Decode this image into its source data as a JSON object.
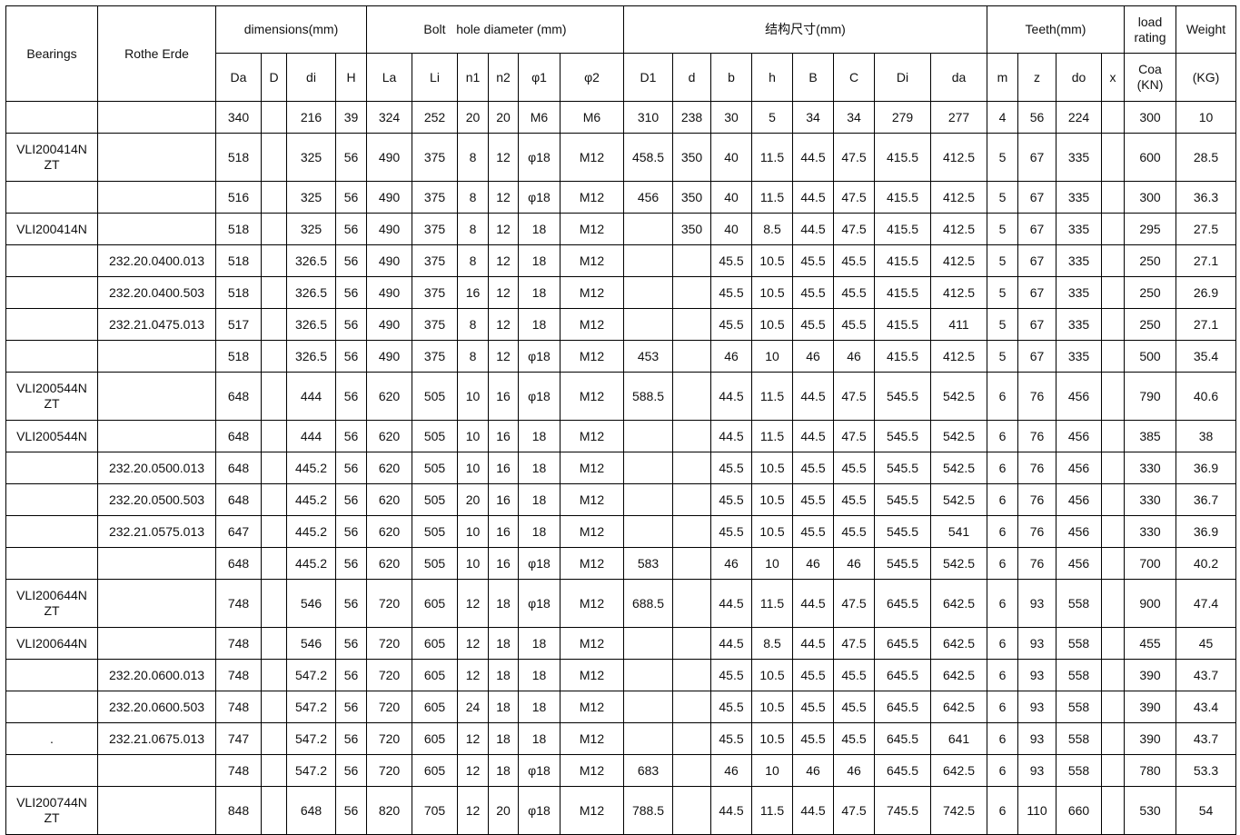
{
  "headers": {
    "bearings": "Bearings",
    "rothe_erde": "Rothe Erde",
    "dimensions": "dimensions(mm)",
    "bolt_hole": "Bolt   hole diameter (mm)",
    "structure": "结构尺寸(mm)",
    "teeth": "Teeth(mm)",
    "load_rating": "load rating",
    "weight": "Weight",
    "sub": [
      "Da",
      "D",
      "di",
      "H",
      "La",
      "Li",
      "n1",
      "n2",
      "φ1",
      "φ2",
      "D1",
      "d",
      "b",
      "h",
      "B",
      "C",
      "Di",
      "da",
      "m",
      "z",
      "do",
      "x",
      "Coa (KN)",
      "(KG)"
    ]
  },
  "rows": [
    [
      "",
      "",
      "340",
      "",
      "216",
      "39",
      "324",
      "252",
      "20",
      "20",
      "M6",
      "M6",
      "310",
      "238",
      "30",
      "5",
      "34",
      "34",
      "279",
      "277",
      "4",
      "56",
      "224",
      "",
      "300",
      "10"
    ],
    [
      "VLI200414N ZT",
      "",
      "518",
      "",
      "325",
      "56",
      "490",
      "375",
      "8",
      "12",
      "φ18",
      "M12",
      "458.5",
      "350",
      "40",
      "11.5",
      "44.5",
      "47.5",
      "415.5",
      "412.5",
      "5",
      "67",
      "335",
      "",
      "600",
      "28.5"
    ],
    [
      "",
      "",
      "516",
      "",
      "325",
      "56",
      "490",
      "375",
      "8",
      "12",
      "φ18",
      "M12",
      "456",
      "350",
      "40",
      "11.5",
      "44.5",
      "47.5",
      "415.5",
      "412.5",
      "5",
      "67",
      "335",
      "",
      "300",
      "36.3"
    ],
    [
      "VLI200414N",
      "",
      "518",
      "",
      "325",
      "56",
      "490",
      "375",
      "8",
      "12",
      "18",
      "M12",
      "",
      "350",
      "40",
      "8.5",
      "44.5",
      "47.5",
      "415.5",
      "412.5",
      "5",
      "67",
      "335",
      "",
      "295",
      "27.5"
    ],
    [
      "",
      "232.20.0400.013",
      "518",
      "",
      "326.5",
      "56",
      "490",
      "375",
      "8",
      "12",
      "18",
      "M12",
      "",
      "",
      "45.5",
      "10.5",
      "45.5",
      "45.5",
      "415.5",
      "412.5",
      "5",
      "67",
      "335",
      "",
      "250",
      "27.1"
    ],
    [
      "",
      "232.20.0400.503",
      "518",
      "",
      "326.5",
      "56",
      "490",
      "375",
      "16",
      "12",
      "18",
      "M12",
      "",
      "",
      "45.5",
      "10.5",
      "45.5",
      "45.5",
      "415.5",
      "412.5",
      "5",
      "67",
      "335",
      "",
      "250",
      "26.9"
    ],
    [
      "",
      "232.21.0475.013",
      "517",
      "",
      "326.5",
      "56",
      "490",
      "375",
      "8",
      "12",
      "18",
      "M12",
      "",
      "",
      "45.5",
      "10.5",
      "45.5",
      "45.5",
      "415.5",
      "411",
      "5",
      "67",
      "335",
      "",
      "250",
      "27.1"
    ],
    [
      "",
      "",
      "518",
      "",
      "326.5",
      "56",
      "490",
      "375",
      "8",
      "12",
      "φ18",
      "M12",
      "453",
      "",
      "46",
      "10",
      "46",
      "46",
      "415.5",
      "412.5",
      "5",
      "67",
      "335",
      "",
      "500",
      "35.4"
    ],
    [
      "VLI200544N ZT",
      "",
      "648",
      "",
      "444",
      "56",
      "620",
      "505",
      "10",
      "16",
      "φ18",
      "M12",
      "588.5",
      "",
      "44.5",
      "11.5",
      "44.5",
      "47.5",
      "545.5",
      "542.5",
      "6",
      "76",
      "456",
      "",
      "790",
      "40.6"
    ],
    [
      "VLI200544N",
      "",
      "648",
      "",
      "444",
      "56",
      "620",
      "505",
      "10",
      "16",
      "18",
      "M12",
      "",
      "",
      "44.5",
      "11.5",
      "44.5",
      "47.5",
      "545.5",
      "542.5",
      "6",
      "76",
      "456",
      "",
      "385",
      "38"
    ],
    [
      "",
      "232.20.0500.013",
      "648",
      "",
      "445.2",
      "56",
      "620",
      "505",
      "10",
      "16",
      "18",
      "M12",
      "",
      "",
      "45.5",
      "10.5",
      "45.5",
      "45.5",
      "545.5",
      "542.5",
      "6",
      "76",
      "456",
      "",
      "330",
      "36.9"
    ],
    [
      "",
      "232.20.0500.503",
      "648",
      "",
      "445.2",
      "56",
      "620",
      "505",
      "20",
      "16",
      "18",
      "M12",
      "",
      "",
      "45.5",
      "10.5",
      "45.5",
      "45.5",
      "545.5",
      "542.5",
      "6",
      "76",
      "456",
      "",
      "330",
      "36.7"
    ],
    [
      "",
      "232.21.0575.013",
      "647",
      "",
      "445.2",
      "56",
      "620",
      "505",
      "10",
      "16",
      "18",
      "M12",
      "",
      "",
      "45.5",
      "10.5",
      "45.5",
      "45.5",
      "545.5",
      "541",
      "6",
      "76",
      "456",
      "",
      "330",
      "36.9"
    ],
    [
      "",
      "",
      "648",
      "",
      "445.2",
      "56",
      "620",
      "505",
      "10",
      "16",
      "φ18",
      "M12",
      "583",
      "",
      "46",
      "10",
      "46",
      "46",
      "545.5",
      "542.5",
      "6",
      "76",
      "456",
      "",
      "700",
      "40.2"
    ],
    [
      "VLI200644N ZT",
      "",
      "748",
      "",
      "546",
      "56",
      "720",
      "605",
      "12",
      "18",
      "φ18",
      "M12",
      "688.5",
      "",
      "44.5",
      "11.5",
      "44.5",
      "47.5",
      "645.5",
      "642.5",
      "6",
      "93",
      "558",
      "",
      "900",
      "47.4"
    ],
    [
      "VLI200644N",
      "",
      "748",
      "",
      "546",
      "56",
      "720",
      "605",
      "12",
      "18",
      "18",
      "M12",
      "",
      "",
      "44.5",
      "8.5",
      "44.5",
      "47.5",
      "645.5",
      "642.5",
      "6",
      "93",
      "558",
      "",
      "455",
      "45"
    ],
    [
      "",
      "232.20.0600.013",
      "748",
      "",
      "547.2",
      "56",
      "720",
      "605",
      "12",
      "18",
      "18",
      "M12",
      "",
      "",
      "45.5",
      "10.5",
      "45.5",
      "45.5",
      "645.5",
      "642.5",
      "6",
      "93",
      "558",
      "",
      "390",
      "43.7"
    ],
    [
      "",
      "232.20.0600.503",
      "748",
      "",
      "547.2",
      "56",
      "720",
      "605",
      "24",
      "18",
      "18",
      "M12",
      "",
      "",
      "45.5",
      "10.5",
      "45.5",
      "45.5",
      "645.5",
      "642.5",
      "6",
      "93",
      "558",
      "",
      "390",
      "43.4"
    ],
    [
      ".",
      "232.21.0675.013",
      "747",
      "",
      "547.2",
      "56",
      "720",
      "605",
      "12",
      "18",
      "18",
      "M12",
      "",
      "",
      "45.5",
      "10.5",
      "45.5",
      "45.5",
      "645.5",
      "641",
      "6",
      "93",
      "558",
      "",
      "390",
      "43.7"
    ],
    [
      "",
      "",
      "748",
      "",
      "547.2",
      "56",
      "720",
      "605",
      "12",
      "18",
      "φ18",
      "M12",
      "683",
      "",
      "46",
      "10",
      "46",
      "46",
      "645.5",
      "642.5",
      "6",
      "93",
      "558",
      "",
      "780",
      "53.3"
    ],
    [
      "VLI200744N ZT",
      "",
      "848",
      "",
      "648",
      "56",
      "820",
      "705",
      "12",
      "20",
      "φ18",
      "M12",
      "788.5",
      "",
      "44.5",
      "11.5",
      "44.5",
      "47.5",
      "745.5",
      "742.5",
      "6",
      "110",
      "660",
      "",
      "530",
      "54"
    ]
  ]
}
